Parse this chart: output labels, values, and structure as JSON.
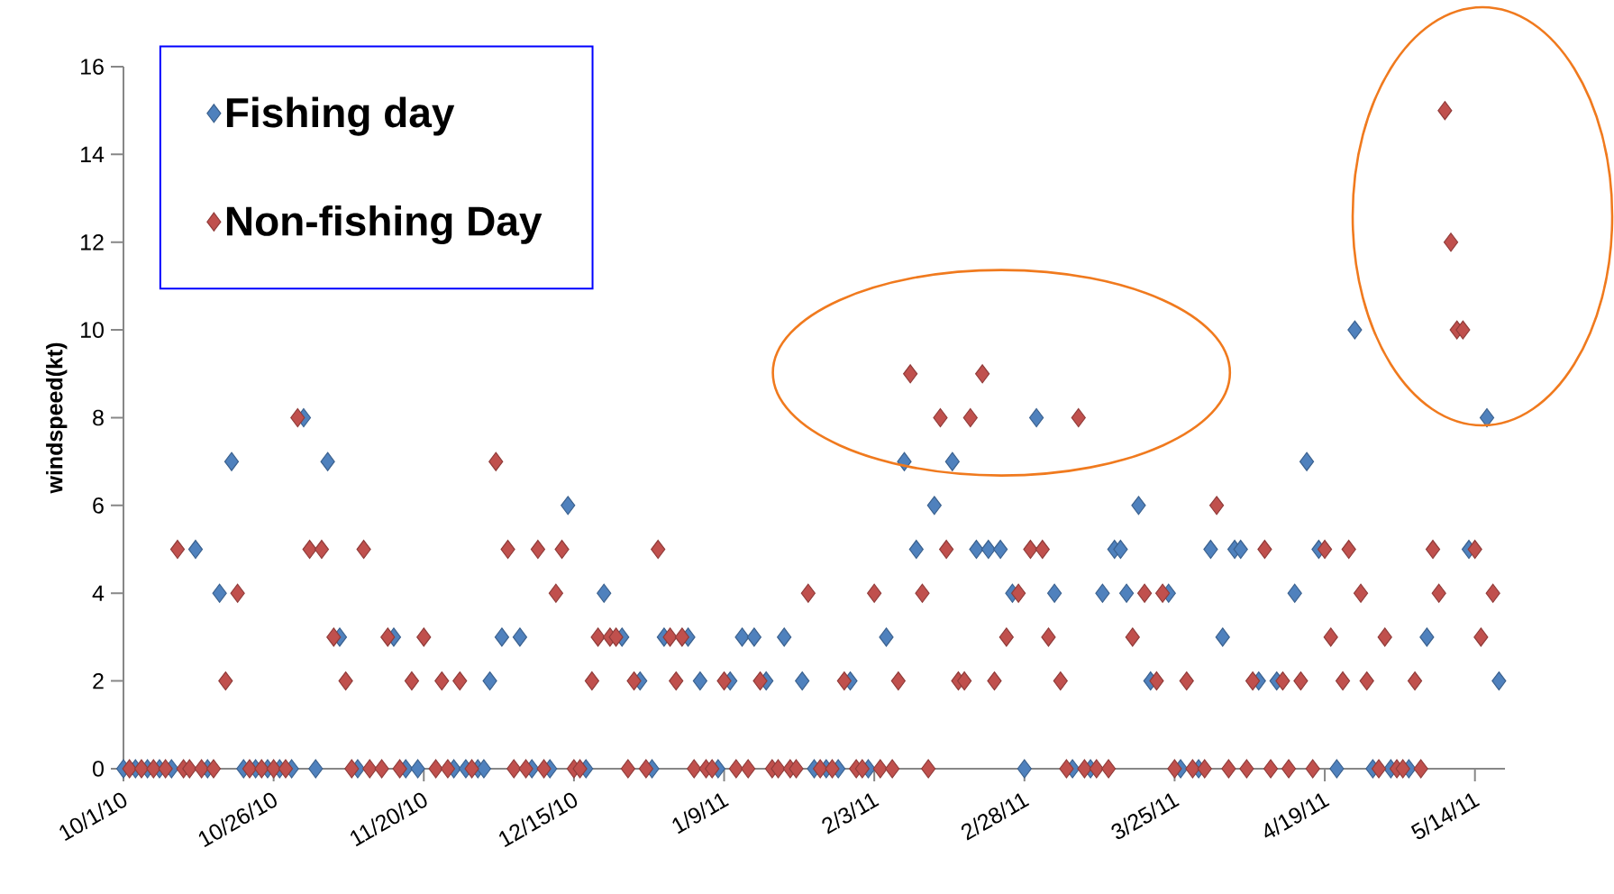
{
  "chart_data": {
    "type": "scatter",
    "ylabel": "windspeed(kt)",
    "marker": "diamond",
    "legend": "top left",
    "xlim": [
      "2010-10-01",
      "2011-05-19"
    ],
    "ylim": [
      0,
      16
    ],
    "yticks": [
      0,
      2,
      4,
      6,
      8,
      10,
      12,
      14,
      16
    ],
    "xticks": [
      {
        "value": "2010-10-01",
        "label": "10/1/10"
      },
      {
        "value": "2010-10-26",
        "label": "10/26/10"
      },
      {
        "value": "2010-11-20",
        "label": "11/20/10"
      },
      {
        "value": "2010-12-15",
        "label": "12/15/10"
      },
      {
        "value": "2011-01-09",
        "label": "1/9/11"
      },
      {
        "value": "2011-02-03",
        "label": "2/3/11"
      },
      {
        "value": "2011-02-28",
        "label": "2/28/11"
      },
      {
        "value": "2011-03-25",
        "label": "3/25/11"
      },
      {
        "value": "2011-04-19",
        "label": "4/19/11"
      },
      {
        "value": "2011-05-14",
        "label": "5/14/11"
      }
    ],
    "series": [
      {
        "name": "Fishing day",
        "color": "#4f81bd",
        "x": [
          "2010-10-01",
          "2010-10-03",
          "2010-10-05",
          "2010-10-07",
          "2010-10-09",
          "2010-10-13",
          "2010-10-15",
          "2010-10-17",
          "2010-10-19",
          "2010-10-21",
          "2010-10-23",
          "2010-10-25",
          "2010-10-27",
          "2010-10-29",
          "2010-10-31",
          "2010-11-02",
          "2010-11-04",
          "2010-11-06",
          "2010-11-09",
          "2010-11-15",
          "2010-11-17",
          "2010-11-19",
          "2010-11-25",
          "2010-11-27",
          "2010-11-29",
          "2010-11-30",
          "2010-12-01",
          "2010-12-03",
          "2010-12-06",
          "2010-12-08",
          "2010-12-11",
          "2010-12-14",
          "2010-12-17",
          "2010-12-20",
          "2010-12-23",
          "2010-12-26",
          "2010-12-28",
          "2010-12-30",
          "2011-01-03",
          "2011-01-05",
          "2011-01-08",
          "2011-01-10",
          "2011-01-12",
          "2011-01-14",
          "2011-01-16",
          "2011-01-19",
          "2011-01-22",
          "2011-01-24",
          "2011-01-26",
          "2011-01-28",
          "2011-01-30",
          "2011-02-02",
          "2011-02-05",
          "2011-02-08",
          "2011-02-10",
          "2011-02-13",
          "2011-02-16",
          "2011-02-20",
          "2011-02-22",
          "2011-02-24",
          "2011-02-26",
          "2011-02-28",
          "2011-03-02",
          "2011-03-05",
          "2011-03-08",
          "2011-03-11",
          "2011-03-13",
          "2011-03-15",
          "2011-03-16",
          "2011-03-17",
          "2011-03-19",
          "2011-03-21",
          "2011-03-24",
          "2011-03-26",
          "2011-03-29",
          "2011-03-31",
          "2011-04-02",
          "2011-04-04",
          "2011-04-05",
          "2011-04-08",
          "2011-04-11",
          "2011-04-14",
          "2011-04-16",
          "2011-04-18",
          "2011-04-21",
          "2011-04-24",
          "2011-04-27",
          "2011-04-30",
          "2011-05-03",
          "2011-05-06",
          "2011-05-13",
          "2011-05-16",
          "2011-05-18"
        ],
        "values": [
          0,
          0,
          0,
          0,
          0,
          5,
          0,
          4,
          7,
          0,
          0,
          0,
          0,
          0,
          8,
          0,
          7,
          3,
          0,
          3,
          0,
          0,
          0,
          0,
          0,
          0,
          2,
          3,
          3,
          0,
          0,
          6,
          0,
          4,
          3,
          2,
          0,
          3,
          3,
          2,
          0,
          2,
          3,
          3,
          2,
          3,
          2,
          0,
          0,
          0,
          2,
          0,
          3,
          7,
          5,
          6,
          7,
          5,
          5,
          5,
          4,
          0,
          8,
          4,
          0,
          0,
          4,
          5,
          5,
          4,
          6,
          2,
          4,
          0,
          0,
          5,
          3,
          5,
          5,
          2,
          2,
          4,
          7,
          5,
          0,
          10,
          0,
          0,
          0,
          3,
          5,
          8,
          2
        ]
      },
      {
        "name": "Non-fishing Day",
        "color": "#c0504d",
        "x": [
          "2010-10-02",
          "2010-10-04",
          "2010-10-06",
          "2010-10-08",
          "2010-10-10",
          "2010-10-11",
          "2010-10-12",
          "2010-10-14",
          "2010-10-16",
          "2010-10-18",
          "2010-10-20",
          "2010-10-22",
          "2010-10-24",
          "2010-10-26",
          "2010-10-28",
          "2010-10-30",
          "2010-11-01",
          "2010-11-03",
          "2010-11-05",
          "2010-11-07",
          "2010-11-08",
          "2010-11-10",
          "2010-11-11",
          "2010-11-13",
          "2010-11-14",
          "2010-11-16",
          "2010-11-18",
          "2010-11-20",
          "2010-11-22",
          "2010-11-23",
          "2010-11-24",
          "2010-11-26",
          "2010-11-28",
          "2010-12-02",
          "2010-12-04",
          "2010-12-05",
          "2010-12-07",
          "2010-12-09",
          "2010-12-10",
          "2010-12-12",
          "2010-12-13",
          "2010-12-15",
          "2010-12-16",
          "2010-12-18",
          "2010-12-19",
          "2010-12-21",
          "2010-12-22",
          "2010-12-24",
          "2010-12-25",
          "2010-12-27",
          "2010-12-29",
          "2010-12-31",
          "2011-01-01",
          "2011-01-02",
          "2011-01-04",
          "2011-01-06",
          "2011-01-07",
          "2011-01-09",
          "2011-01-11",
          "2011-01-13",
          "2011-01-15",
          "2011-01-17",
          "2011-01-18",
          "2011-01-20",
          "2011-01-21",
          "2011-01-23",
          "2011-01-25",
          "2011-01-27",
          "2011-01-29",
          "2011-01-31",
          "2011-02-01",
          "2011-02-03",
          "2011-02-04",
          "2011-02-06",
          "2011-02-07",
          "2011-02-09",
          "2011-02-11",
          "2011-02-12",
          "2011-02-14",
          "2011-02-15",
          "2011-02-17",
          "2011-02-18",
          "2011-02-19",
          "2011-02-21",
          "2011-02-23",
          "2011-02-25",
          "2011-02-27",
          "2011-03-01",
          "2011-03-03",
          "2011-03-04",
          "2011-03-06",
          "2011-03-07",
          "2011-03-09",
          "2011-03-10",
          "2011-03-12",
          "2011-03-14",
          "2011-03-18",
          "2011-03-20",
          "2011-03-22",
          "2011-03-23",
          "2011-03-25",
          "2011-03-27",
          "2011-03-28",
          "2011-03-30",
          "2011-04-01",
          "2011-04-03",
          "2011-04-06",
          "2011-04-07",
          "2011-04-09",
          "2011-04-10",
          "2011-04-12",
          "2011-04-13",
          "2011-04-15",
          "2011-04-17",
          "2011-04-19",
          "2011-04-20",
          "2011-04-22",
          "2011-04-23",
          "2011-04-25",
          "2011-04-26",
          "2011-04-28",
          "2011-04-29",
          "2011-05-01",
          "2011-05-02",
          "2011-05-04",
          "2011-05-05",
          "2011-05-07",
          "2011-05-08",
          "2011-05-09",
          "2011-05-10",
          "2011-05-11",
          "2011-05-12",
          "2011-05-14",
          "2011-05-15",
          "2011-05-17"
        ],
        "values": [
          0,
          0,
          0,
          0,
          5,
          0,
          0,
          0,
          0,
          2,
          4,
          0,
          0,
          0,
          0,
          8,
          5,
          5,
          3,
          2,
          0,
          5,
          0,
          0,
          3,
          0,
          2,
          3,
          0,
          2,
          0,
          2,
          0,
          7,
          5,
          0,
          0,
          5,
          0,
          4,
          5,
          0,
          0,
          2,
          3,
          3,
          3,
          0,
          2,
          0,
          5,
          3,
          2,
          3,
          0,
          0,
          0,
          2,
          0,
          0,
          2,
          0,
          0,
          0,
          0,
          4,
          0,
          0,
          2,
          0,
          0,
          4,
          0,
          0,
          2,
          9,
          4,
          0,
          8,
          5,
          2,
          2,
          8,
          9,
          2,
          3,
          4,
          5,
          5,
          3,
          2,
          0,
          8,
          0,
          0,
          0,
          3,
          4,
          2,
          4,
          0,
          2,
          0,
          0,
          6,
          0,
          0,
          2,
          5,
          0,
          2,
          0,
          2,
          0,
          5,
          3,
          2,
          5,
          4,
          2,
          0,
          3,
          0,
          0,
          2,
          0,
          5,
          4,
          15,
          12,
          10,
          10,
          5,
          3,
          4
        ]
      }
    ]
  }
}
